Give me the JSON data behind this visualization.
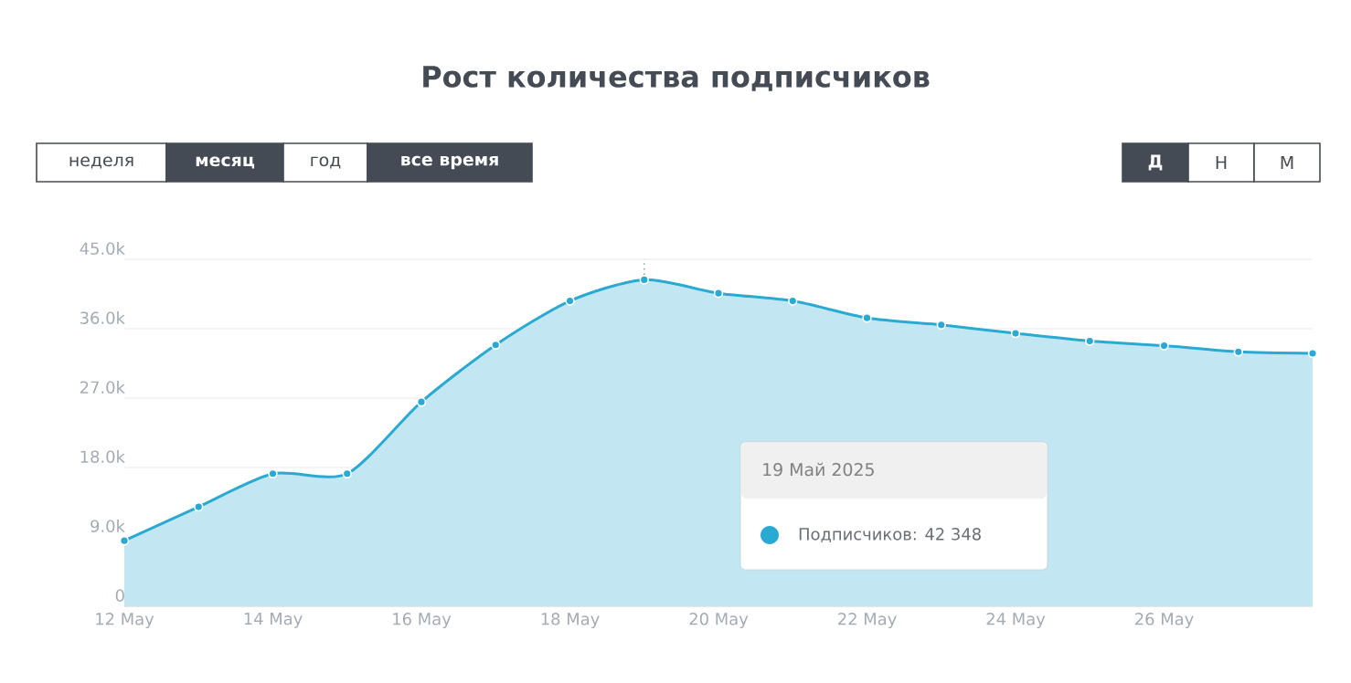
{
  "chart_data": {
    "type": "area",
    "title": "Рост количества подписчиков",
    "x": [
      "2025-05-12",
      "2025-05-13",
      "2025-05-14",
      "2025-05-15",
      "2025-05-16",
      "2025-05-17",
      "2025-05-18",
      "2025-05-19",
      "2025-05-20",
      "2025-05-21",
      "2025-05-22",
      "2025-05-23",
      "2025-05-24",
      "2025-05-25",
      "2025-05-26",
      "2025-05-27",
      "2025-05-28"
    ],
    "values": [
      8500,
      12900,
      17200,
      17200,
      26500,
      33900,
      39600,
      42348,
      40600,
      39600,
      37400,
      36500,
      35400,
      34400,
      33800,
      33000,
      32800
    ],
    "color": "#2aa9d2",
    "xlim": [
      "2025-05-12",
      "2025-05-28"
    ],
    "xticks": [
      {
        "value": "2025-05-12",
        "label": "12 May"
      },
      {
        "value": "2025-05-14",
        "label": "14 May"
      },
      {
        "value": "2025-05-16",
        "label": "16 May"
      },
      {
        "value": "2025-05-18",
        "label": "18 May"
      },
      {
        "value": "2025-05-20",
        "label": "20 May"
      },
      {
        "value": "2025-05-22",
        "label": "22 May"
      },
      {
        "value": "2025-05-24",
        "label": "24 May"
      },
      {
        "value": "2025-05-26",
        "label": "26 May"
      }
    ],
    "ylim": [
      0,
      45000
    ],
    "yticks": [
      0,
      {
        "value": 9000,
        "label": "9.0k"
      },
      {
        "value": 18000,
        "label": "18.0k"
      },
      {
        "value": 27000,
        "label": "27.0k"
      },
      {
        "value": 36000,
        "label": "36.0k"
      },
      {
        "value": 45000,
        "label": "45.0k"
      }
    ],
    "grid": "y",
    "marker": "circle",
    "line_style": "solid",
    "ref_lines": [
      {
        "axis": "x",
        "value": "2025-05-19",
        "line_style": "dotted",
        "color": "#9aa5ad"
      }
    ],
    "annotations": [
      "неделя",
      "месяц",
      "год",
      "все время",
      "Д",
      "Н",
      "М",
      "19 Май 2025",
      "Подписчиков: 42 348"
    ]
  }
}
